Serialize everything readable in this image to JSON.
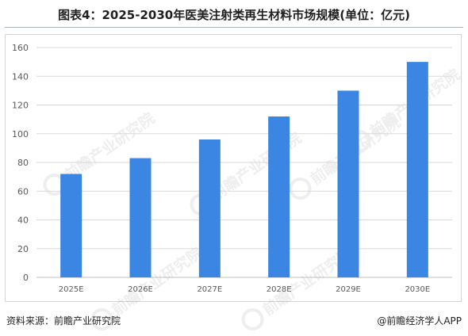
{
  "chart_data": {
    "type": "bar",
    "title": "图表4：2025-2030年医美注射类再生材料市场规模(单位：亿元)",
    "categories": [
      "2025E",
      "2026E",
      "2027E",
      "2028E",
      "2029E",
      "2030E"
    ],
    "values": [
      72,
      83,
      96,
      112,
      130,
      150
    ],
    "ylim": [
      0,
      160
    ],
    "yticks": [
      0,
      20,
      40,
      60,
      80,
      100,
      120,
      140,
      160
    ],
    "grid": true,
    "bar_color": "#3b86e3"
  },
  "footer": {
    "source": "资料来源：前瞻产业研究院",
    "brand": "@前瞻经济学人APP"
  },
  "watermark": {
    "text": "前瞻产业研究院"
  }
}
